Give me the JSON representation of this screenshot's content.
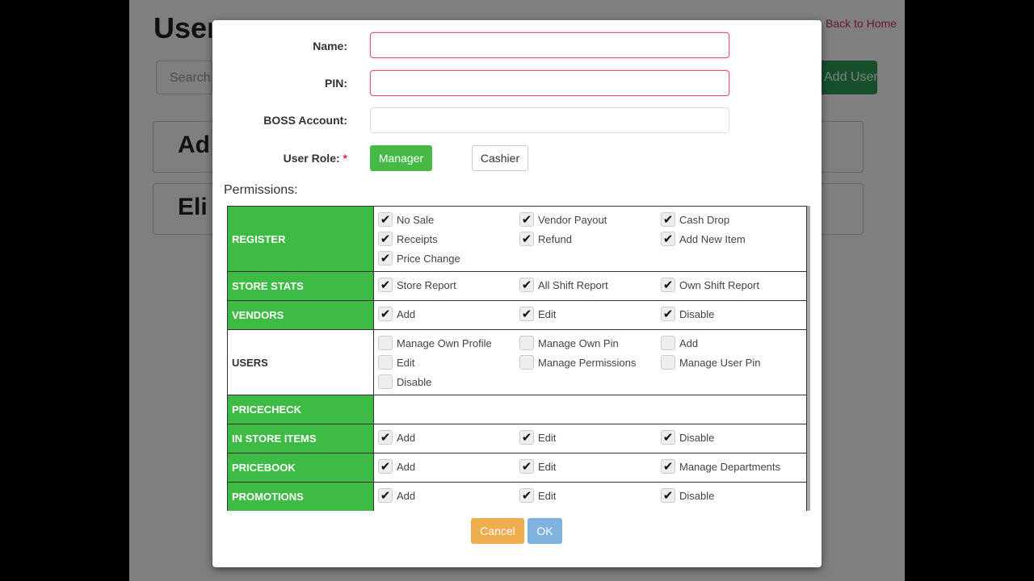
{
  "background": {
    "title": "User Management",
    "back_link": "Back to Home",
    "search_placeholder": "Search",
    "add_button": "Add User...",
    "cards": [
      "Ad",
      "Eli"
    ]
  },
  "form": {
    "name_label": "Name:",
    "name_value": "",
    "pin_label": "PIN:",
    "pin_value": "",
    "boss_label": "BOSS Account:",
    "boss_value": "",
    "role_label": "User Role:",
    "required_mark": "*",
    "roles": [
      {
        "label": "Manager",
        "selected": true
      },
      {
        "label": "Cashier",
        "selected": false
      }
    ]
  },
  "permissions_label": "Permissions:",
  "permissions": [
    {
      "category": "REGISTER",
      "enabled": true,
      "items": [
        {
          "label": "No Sale",
          "checked": true
        },
        {
          "label": "Vendor Payout",
          "checked": true
        },
        {
          "label": "Cash Drop",
          "checked": true
        },
        {
          "label": "Receipts",
          "checked": true
        },
        {
          "label": "Refund",
          "checked": true
        },
        {
          "label": "Add New Item",
          "checked": true
        },
        {
          "label": "Price Change",
          "checked": true
        }
      ]
    },
    {
      "category": "STORE STATS",
      "enabled": true,
      "items": [
        {
          "label": "Store Report",
          "checked": true
        },
        {
          "label": "All Shift Report",
          "checked": true
        },
        {
          "label": "Own Shift Report",
          "checked": true
        }
      ]
    },
    {
      "category": "VENDORS",
      "enabled": true,
      "items": [
        {
          "label": "Add",
          "checked": true
        },
        {
          "label": "Edit",
          "checked": true
        },
        {
          "label": "Disable",
          "checked": true
        }
      ]
    },
    {
      "category": "USERS",
      "enabled": false,
      "items": [
        {
          "label": "Manage Own Profile",
          "checked": false
        },
        {
          "label": "Manage Own Pin",
          "checked": false
        },
        {
          "label": "Add",
          "checked": false
        },
        {
          "label": "Edit",
          "checked": false
        },
        {
          "label": "Manage Permissions",
          "checked": false
        },
        {
          "label": "Manage User Pin",
          "checked": false
        },
        {
          "label": "Disable",
          "checked": false
        }
      ]
    },
    {
      "category": "PRICECHECK",
      "enabled": true,
      "items": []
    },
    {
      "category": "IN STORE ITEMS",
      "enabled": true,
      "items": [
        {
          "label": "Add",
          "checked": true
        },
        {
          "label": "Edit",
          "checked": true
        },
        {
          "label": "Disable",
          "checked": true
        }
      ]
    },
    {
      "category": "PRICEBOOK",
      "enabled": true,
      "items": [
        {
          "label": "Add",
          "checked": true
        },
        {
          "label": "Edit",
          "checked": true
        },
        {
          "label": "Manage Departments",
          "checked": true
        }
      ]
    },
    {
      "category": "PROMOTIONS",
      "enabled": true,
      "items": [
        {
          "label": "Add",
          "checked": true
        },
        {
          "label": "Edit",
          "checked": true
        },
        {
          "label": "Disable",
          "checked": true
        }
      ]
    }
  ],
  "actions": {
    "cancel": "Cancel",
    "ok": "OK"
  },
  "colors": {
    "category_green": "#3dbb45",
    "manager_green": "#46b946",
    "cancel_orange": "#f0ad4e",
    "ok_blue": "#7fb2dc",
    "error_border": "#e05a6a"
  }
}
